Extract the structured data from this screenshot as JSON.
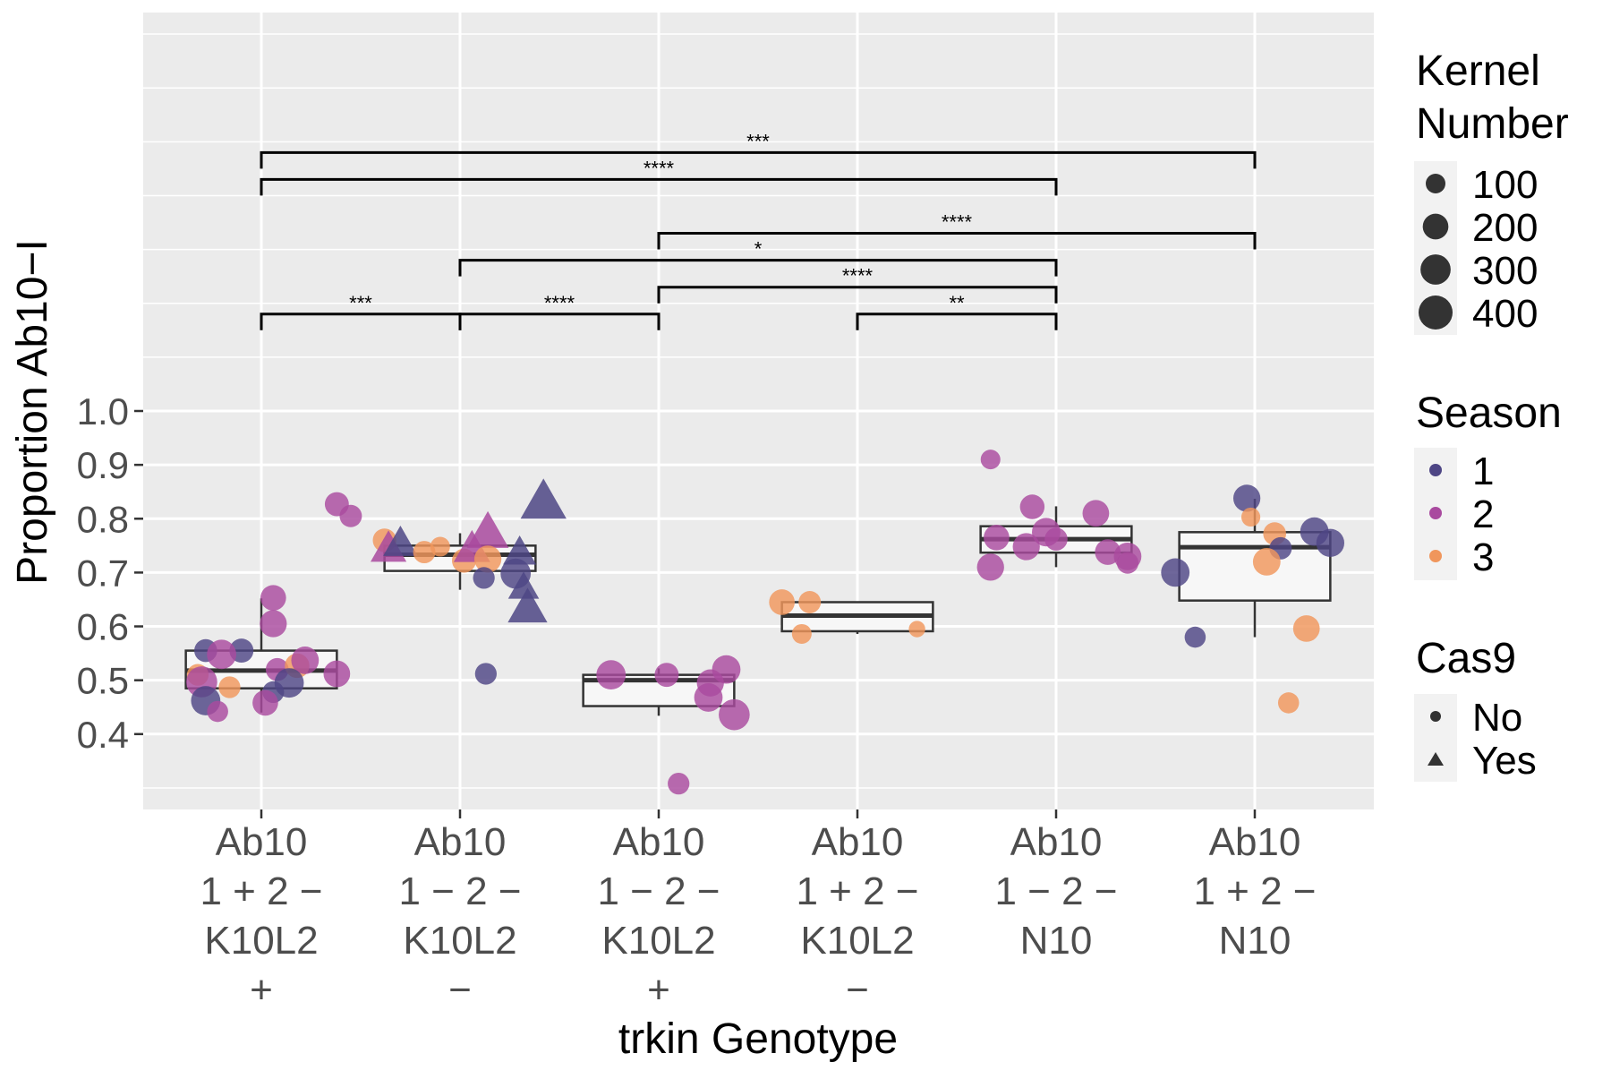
{
  "chart_data": {
    "type": "box",
    "title": "",
    "xlabel": "trkin Genotype",
    "ylabel": "Proportion Ab10−I",
    "ylim": [
      0.26,
      1.74
    ],
    "yticks": [
      "0.4",
      "0.5",
      "0.6",
      "0.7",
      "0.8",
      "0.9",
      "1.0"
    ],
    "grid": true,
    "legend_position": "right",
    "categories": [
      {
        "lines": [
          "Ab10",
          "1 + 2 −",
          "K10L2",
          "+"
        ]
      },
      {
        "lines": [
          "Ab10",
          "1 − 2 −",
          "K10L2",
          "−"
        ]
      },
      {
        "lines": [
          "Ab10",
          "1 − 2 −",
          "K10L2",
          "+"
        ]
      },
      {
        "lines": [
          "Ab10",
          "1 + 2 −",
          "K10L2",
          "−"
        ]
      },
      {
        "lines": [
          "Ab10",
          "1 − 2 −",
          "N10"
        ]
      },
      {
        "lines": [
          "Ab10",
          "1 + 2 −",
          "N10"
        ]
      }
    ],
    "boxes": [
      {
        "q1": 0.485,
        "median": 0.518,
        "q3": 0.555,
        "whisker_low": 0.44,
        "whisker_high": 0.652
      },
      {
        "q1": 0.703,
        "median": 0.733,
        "q3": 0.75,
        "whisker_low": 0.668,
        "whisker_high": 0.773
      },
      {
        "q1": 0.452,
        "median": 0.5,
        "q3": 0.51,
        "whisker_low": 0.434,
        "whisker_high": 0.522
      },
      {
        "q1": 0.591,
        "median": 0.62,
        "q3": 0.645,
        "whisker_low": 0.586,
        "whisker_high": 0.645
      },
      {
        "q1": 0.737,
        "median": 0.762,
        "q3": 0.786,
        "whisker_low": 0.71,
        "whisker_high": 0.823
      },
      {
        "q1": 0.648,
        "median": 0.747,
        "q3": 0.775,
        "whisker_low": 0.58,
        "whisker_high": 0.837
      }
    ],
    "points": [
      {
        "group": 1,
        "dx": -0.28,
        "y": 0.555,
        "season": 1,
        "kernels": 150,
        "cas9": "No"
      },
      {
        "group": 1,
        "dx": -0.1,
        "y": 0.555,
        "season": 1,
        "kernels": 170,
        "cas9": "No"
      },
      {
        "group": 1,
        "dx": -0.2,
        "y": 0.548,
        "season": 2,
        "kernels": 280,
        "cas9": "No"
      },
      {
        "group": 1,
        "dx": -0.32,
        "y": 0.51,
        "season": 3,
        "kernels": 130,
        "cas9": "No"
      },
      {
        "group": 1,
        "dx": -0.3,
        "y": 0.497,
        "season": 2,
        "kernels": 320,
        "cas9": "No"
      },
      {
        "group": 1,
        "dx": -0.16,
        "y": 0.487,
        "season": 3,
        "kernels": 130,
        "cas9": "No"
      },
      {
        "group": 1,
        "dx": -0.28,
        "y": 0.462,
        "season": 1,
        "kernels": 280,
        "cas9": "No"
      },
      {
        "group": 1,
        "dx": -0.22,
        "y": 0.442,
        "season": 2,
        "kernels": 120,
        "cas9": "No"
      },
      {
        "group": 1,
        "dx": 0.06,
        "y": 0.653,
        "season": 2,
        "kernels": 200,
        "cas9": "No"
      },
      {
        "group": 1,
        "dx": 0.06,
        "y": 0.605,
        "season": 2,
        "kernels": 230,
        "cas9": "No"
      },
      {
        "group": 1,
        "dx": 0.08,
        "y": 0.52,
        "season": 2,
        "kernels": 150,
        "cas9": "No"
      },
      {
        "group": 1,
        "dx": 0.18,
        "y": 0.527,
        "season": 3,
        "kernels": 180,
        "cas9": "No"
      },
      {
        "group": 1,
        "dx": 0.22,
        "y": 0.537,
        "season": 2,
        "kernels": 240,
        "cas9": "No"
      },
      {
        "group": 1,
        "dx": 0.14,
        "y": 0.495,
        "season": 1,
        "kernels": 280,
        "cas9": "No"
      },
      {
        "group": 1,
        "dx": 0.06,
        "y": 0.478,
        "season": 1,
        "kernels": 130,
        "cas9": "No"
      },
      {
        "group": 1,
        "dx": 0.02,
        "y": 0.458,
        "season": 2,
        "kernels": 200,
        "cas9": "No"
      },
      {
        "group": 1,
        "dx": 0.38,
        "y": 0.512,
        "season": 2,
        "kernels": 220,
        "cas9": "No"
      },
      {
        "group": 1,
        "dx": 0.38,
        "y": 0.827,
        "season": 2,
        "kernels": 170,
        "cas9": "No"
      },
      {
        "group": 1,
        "dx": 0.45,
        "y": 0.805,
        "season": 2,
        "kernels": 140,
        "cas9": "No"
      },
      {
        "group": 2,
        "dx": -0.38,
        "y": 0.76,
        "season": 3,
        "kernels": 160,
        "cas9": "No"
      },
      {
        "group": 2,
        "dx": -0.36,
        "y": 0.745,
        "season": 2,
        "kernels": 220,
        "cas9": "Yes"
      },
      {
        "group": 2,
        "dx": -0.3,
        "y": 0.755,
        "season": 1,
        "kernels": 200,
        "cas9": "Yes"
      },
      {
        "group": 2,
        "dx": -0.18,
        "y": 0.738,
        "season": 3,
        "kernels": 140,
        "cas9": "No"
      },
      {
        "group": 2,
        "dx": -0.1,
        "y": 0.748,
        "season": 3,
        "kernels": 100,
        "cas9": "No"
      },
      {
        "group": 2,
        "dx": 0.02,
        "y": 0.722,
        "season": 3,
        "kernels": 170,
        "cas9": "No"
      },
      {
        "group": 2,
        "dx": 0.06,
        "y": 0.745,
        "season": 2,
        "kernels": 230,
        "cas9": "Yes"
      },
      {
        "group": 2,
        "dx": 0.14,
        "y": 0.775,
        "season": 2,
        "kernels": 320,
        "cas9": "Yes"
      },
      {
        "group": 2,
        "dx": 0.14,
        "y": 0.725,
        "season": 3,
        "kernels": 230,
        "cas9": "No"
      },
      {
        "group": 2,
        "dx": 0.12,
        "y": 0.69,
        "season": 1,
        "kernels": 130,
        "cas9": "No"
      },
      {
        "group": 2,
        "dx": 0.28,
        "y": 0.698,
        "season": 1,
        "kernels": 300,
        "cas9": "No"
      },
      {
        "group": 2,
        "dx": 0.3,
        "y": 0.738,
        "season": 1,
        "kernels": 180,
        "cas9": "Yes"
      },
      {
        "group": 2,
        "dx": 0.32,
        "y": 0.673,
        "season": 1,
        "kernels": 150,
        "cas9": "Yes"
      },
      {
        "group": 2,
        "dx": 0.34,
        "y": 0.635,
        "season": 1,
        "kernels": 280,
        "cas9": "Yes"
      },
      {
        "group": 2,
        "dx": 0.42,
        "y": 0.832,
        "season": 1,
        "kernels": 400,
        "cas9": "Yes"
      },
      {
        "group": 2,
        "dx": 0.13,
        "y": 0.512,
        "season": 1,
        "kernels": 130,
        "cas9": "No"
      },
      {
        "group": 3,
        "dx": -0.24,
        "y": 0.51,
        "season": 2,
        "kernels": 280,
        "cas9": "No"
      },
      {
        "group": 3,
        "dx": 0.04,
        "y": 0.51,
        "season": 2,
        "kernels": 170,
        "cas9": "No"
      },
      {
        "group": 3,
        "dx": 0.26,
        "y": 0.495,
        "season": 2,
        "kernels": 230,
        "cas9": "No"
      },
      {
        "group": 3,
        "dx": 0.34,
        "y": 0.52,
        "season": 2,
        "kernels": 260,
        "cas9": "No"
      },
      {
        "group": 3,
        "dx": 0.25,
        "y": 0.468,
        "season": 2,
        "kernels": 260,
        "cas9": "No"
      },
      {
        "group": 3,
        "dx": 0.38,
        "y": 0.436,
        "season": 2,
        "kernels": 320,
        "cas9": "No"
      },
      {
        "group": 3,
        "dx": 0.1,
        "y": 0.308,
        "season": 2,
        "kernels": 130,
        "cas9": "No"
      },
      {
        "group": 4,
        "dx": -0.38,
        "y": 0.645,
        "season": 3,
        "kernels": 200,
        "cas9": "No"
      },
      {
        "group": 4,
        "dx": -0.24,
        "y": 0.645,
        "season": 3,
        "kernels": 140,
        "cas9": "No"
      },
      {
        "group": 4,
        "dx": -0.28,
        "y": 0.586,
        "season": 3,
        "kernels": 100,
        "cas9": "No"
      },
      {
        "group": 4,
        "dx": 0.3,
        "y": 0.595,
        "season": 3,
        "kernels": 60,
        "cas9": "No"
      },
      {
        "group": 5,
        "dx": -0.33,
        "y": 0.91,
        "season": 2,
        "kernels": 100,
        "cas9": "No"
      },
      {
        "group": 5,
        "dx": -0.12,
        "y": 0.822,
        "season": 2,
        "kernels": 180,
        "cas9": "No"
      },
      {
        "group": 5,
        "dx": 0.2,
        "y": 0.81,
        "season": 2,
        "kernels": 220,
        "cas9": "No"
      },
      {
        "group": 5,
        "dx": -0.3,
        "y": 0.765,
        "season": 2,
        "kernels": 200,
        "cas9": "No"
      },
      {
        "group": 5,
        "dx": -0.05,
        "y": 0.775,
        "season": 2,
        "kernels": 260,
        "cas9": "No"
      },
      {
        "group": 5,
        "dx": -0.15,
        "y": 0.748,
        "season": 2,
        "kernels": 230,
        "cas9": "No"
      },
      {
        "group": 5,
        "dx": 0.0,
        "y": 0.762,
        "season": 2,
        "kernels": 150,
        "cas9": "No"
      },
      {
        "group": 5,
        "dx": 0.26,
        "y": 0.738,
        "season": 2,
        "kernels": 200,
        "cas9": "No"
      },
      {
        "group": 5,
        "dx": 0.36,
        "y": 0.73,
        "season": 2,
        "kernels": 240,
        "cas9": "No"
      },
      {
        "group": 5,
        "dx": 0.36,
        "y": 0.718,
        "season": 2,
        "kernels": 130,
        "cas9": "No"
      },
      {
        "group": 5,
        "dx": -0.33,
        "y": 0.71,
        "season": 2,
        "kernels": 230,
        "cas9": "No"
      },
      {
        "group": 6,
        "dx": -0.04,
        "y": 0.838,
        "season": 1,
        "kernels": 230,
        "cas9": "No"
      },
      {
        "group": 6,
        "dx": -0.02,
        "y": 0.803,
        "season": 3,
        "kernels": 90,
        "cas9": "No"
      },
      {
        "group": 6,
        "dx": 0.3,
        "y": 0.776,
        "season": 1,
        "kernels": 260,
        "cas9": "No"
      },
      {
        "group": 6,
        "dx": 0.38,
        "y": 0.755,
        "season": 1,
        "kernels": 250,
        "cas9": "No"
      },
      {
        "group": 6,
        "dx": 0.1,
        "y": 0.772,
        "season": 3,
        "kernels": 150,
        "cas9": "No"
      },
      {
        "group": 6,
        "dx": 0.13,
        "y": 0.745,
        "season": 1,
        "kernels": 140,
        "cas9": "No"
      },
      {
        "group": 6,
        "dx": 0.06,
        "y": 0.72,
        "season": 3,
        "kernels": 240,
        "cas9": "No"
      },
      {
        "group": 6,
        "dx": -0.4,
        "y": 0.7,
        "season": 1,
        "kernels": 260,
        "cas9": "No"
      },
      {
        "group": 6,
        "dx": 0.26,
        "y": 0.596,
        "season": 3,
        "kernels": 220,
        "cas9": "No"
      },
      {
        "group": 6,
        "dx": -0.3,
        "y": 0.58,
        "season": 1,
        "kernels": 120,
        "cas9": "No"
      },
      {
        "group": 6,
        "dx": 0.17,
        "y": 0.458,
        "season": 3,
        "kernels": 120,
        "cas9": "No"
      }
    ],
    "comparisons": [
      {
        "from": 1,
        "to": 6,
        "y": 1.48,
        "label": "***"
      },
      {
        "from": 1,
        "to": 5,
        "y": 1.43,
        "label": "****"
      },
      {
        "from": 3,
        "to": 6,
        "y": 1.33,
        "label": "****"
      },
      {
        "from": 2,
        "to": 5,
        "y": 1.28,
        "label": "*"
      },
      {
        "from": 3,
        "to": 5,
        "y": 1.23,
        "label": "****"
      },
      {
        "from": 1,
        "to": 2,
        "y": 1.18,
        "label": "***"
      },
      {
        "from": 2,
        "to": 3,
        "y": 1.18,
        "label": "****"
      },
      {
        "from": 4,
        "to": 5,
        "y": 1.18,
        "label": "**"
      }
    ],
    "legends": {
      "size": {
        "title": [
          "Kernel",
          "Number"
        ],
        "values": [
          100,
          200,
          300,
          400
        ],
        "labels": [
          "100",
          "200",
          "300",
          "400"
        ]
      },
      "season": {
        "title": "Season",
        "labels": [
          "1",
          "2",
          "3"
        ],
        "colors": [
          "#4e4685",
          "#a94a9f",
          "#f0965c"
        ]
      },
      "cas9": {
        "title": "Cas9",
        "labels": [
          "No",
          "Yes"
        ],
        "shapes": [
          "circle",
          "triangle"
        ]
      }
    }
  }
}
